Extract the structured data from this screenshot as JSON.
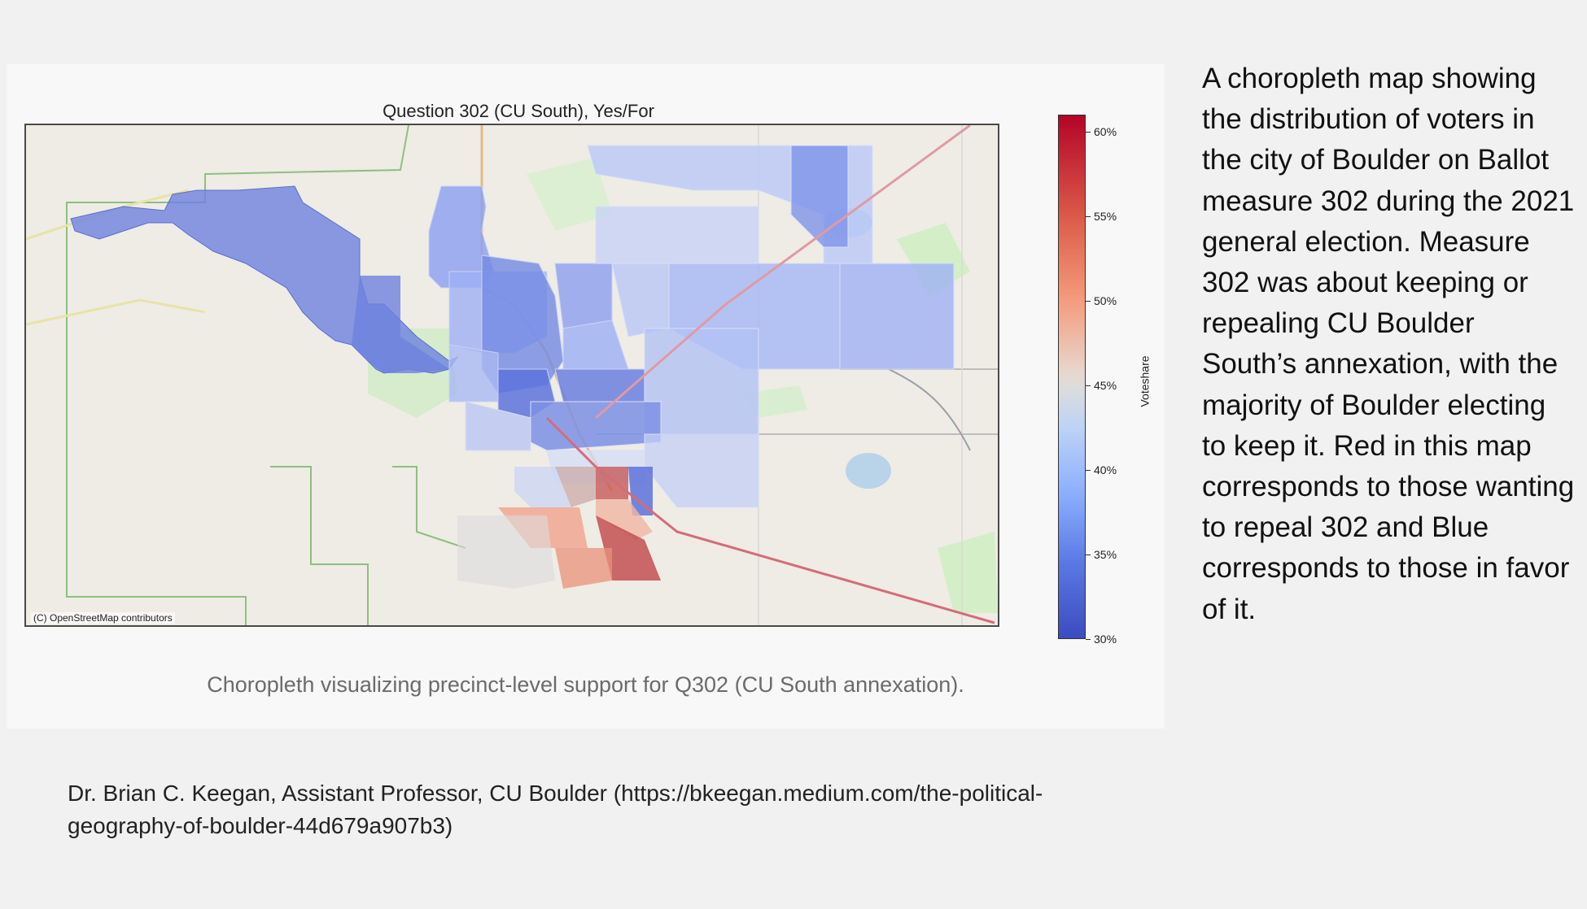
{
  "figure": {
    "map_title": "Question 302 (CU South), Yes/For",
    "osm_credit": "(C) OpenStreetMap contributors",
    "caption": "Choropleth visualizing precinct-level support for Q302 (CU South annexation)."
  },
  "colorbar": {
    "label": "Voteshare",
    "ticks": [
      "60%",
      "55%",
      "50%",
      "45%",
      "40%",
      "35%",
      "30%"
    ],
    "tick_values": [
      60,
      55,
      50,
      45,
      40,
      35,
      30
    ],
    "range": [
      30,
      61
    ],
    "colors": {
      "low": "#3b4cc0",
      "mid": "#dddcdc",
      "high": "#b40426"
    }
  },
  "description": "A choropleth map showing the distribution of voters in the city of Boulder on Ballot measure 302 during the 2021 general election. Measure 302 was about keeping or repealing CU Boulder South’s annexation, with the majority of Boulder electing to keep it. Red in this map corresponds to those wanting to repeal 302 and Blue corresponds to those in favor of it.",
  "citation": "Dr. Brian C. Keegan, Assistant Professor, CU Boulder (https://bkeegan.medium.com/the-political-geography-of-boulder-44d679a907b3)"
}
